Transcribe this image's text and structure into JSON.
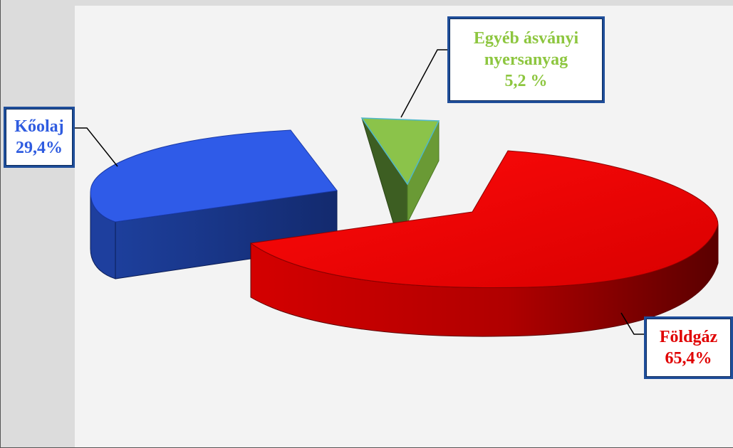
{
  "chart_data": {
    "type": "pie",
    "style": "3d-exploded",
    "title": "",
    "slices": [
      {
        "name": "Kőolaj",
        "value": 29.4,
        "label_lines": [
          "Kőolaj",
          "29,4%"
        ],
        "color": "#2f5be8",
        "text_color": "#2f5ce0"
      },
      {
        "name": "Egyéb ásványi nyersanyag",
        "value": 5.2,
        "label_lines": [
          "Egyéb ásványi",
          "nyersanyag",
          "5,2 %"
        ],
        "color": "#8bc34a",
        "text_color": "#8dc63f"
      },
      {
        "name": "Földgáz",
        "value": 65.4,
        "label_lines": [
          "Földgáz",
          "65,4%"
        ],
        "color": "#e00000",
        "text_color": "#e00000"
      }
    ]
  }
}
